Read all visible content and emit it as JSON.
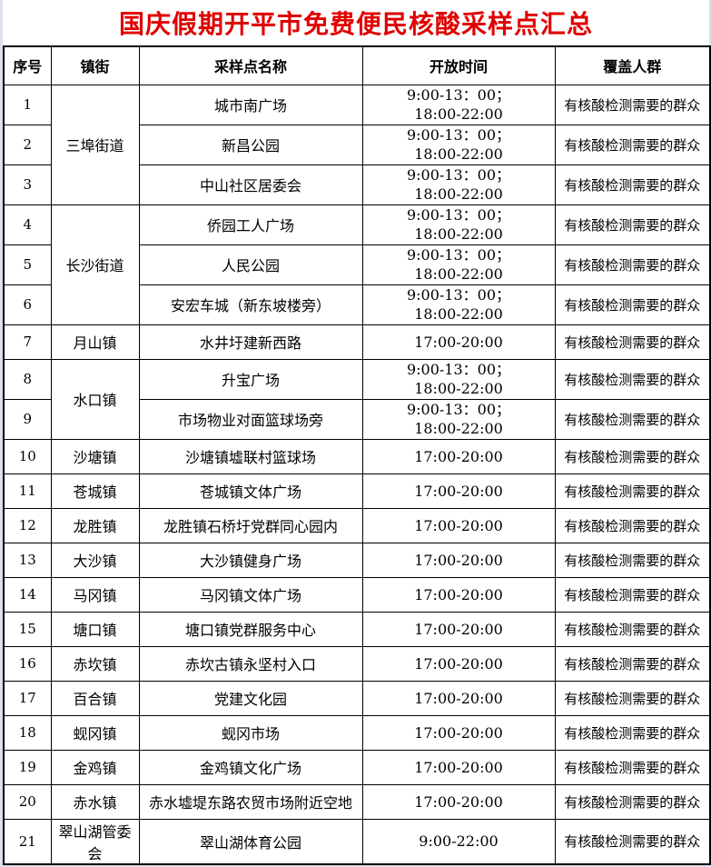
{
  "title": "国庆假期开平市免费便民核酸采样点汇总",
  "colors": {
    "title_text": "#e00000",
    "page_margin_bg": "#dbe0ec",
    "cell_bg": "#ffffff",
    "border": "#000000"
  },
  "table": {
    "headers": [
      "序号",
      "镇街",
      "采样点名称",
      "开放时间",
      "覆盖人群"
    ],
    "coverage_default": "有核酸检测需要的群众",
    "rows": [
      {
        "no": "1",
        "town": "三埠街道",
        "town_rowspan": 3,
        "site": "城市南广场",
        "time": [
          "9:00-13：00；",
          "18:00-22:00"
        ],
        "coverage": "有核酸检测需要的群众"
      },
      {
        "no": "2",
        "site": "新昌公园",
        "time": [
          "9:00-13：00；",
          "18:00-22:00"
        ],
        "coverage": "有核酸检测需要的群众"
      },
      {
        "no": "3",
        "site": "中山社区居委会",
        "time": [
          "9:00-13：00；",
          "18:00-22:00"
        ],
        "coverage": "有核酸检测需要的群众"
      },
      {
        "no": "4",
        "town": "长沙街道",
        "town_rowspan": 3,
        "site": "侨园工人广场",
        "time": [
          "9:00-13：00；",
          "18:00-22:00"
        ],
        "coverage": "有核酸检测需要的群众"
      },
      {
        "no": "5",
        "site": "人民公园",
        "time": [
          "9:00-13：00；",
          "18:00-22:00"
        ],
        "coverage": "有核酸检测需要的群众"
      },
      {
        "no": "6",
        "site": "安宏车城（新东坡楼旁）",
        "time": [
          "9:00-13：00；",
          "18:00-22:00"
        ],
        "coverage": "有核酸检测需要的群众"
      },
      {
        "no": "7",
        "town": "月山镇",
        "town_rowspan": 1,
        "site": "水井圩建新西路",
        "time": [
          "17:00-20:00"
        ],
        "coverage": "有核酸检测需要的群众"
      },
      {
        "no": "8",
        "town": "水口镇",
        "town_rowspan": 2,
        "site": "升宝广场",
        "time": [
          "9:00-13：00；",
          "18:00-22:00"
        ],
        "coverage": "有核酸检测需要的群众"
      },
      {
        "no": "9",
        "site": "市场物业对面篮球场旁",
        "time": [
          "9:00-13：00；",
          "18:00-22:00"
        ],
        "coverage": "有核酸检测需要的群众"
      },
      {
        "no": "10",
        "town": "沙塘镇",
        "town_rowspan": 1,
        "site": "沙塘镇墟联村篮球场",
        "time": [
          "17:00-20:00"
        ],
        "coverage": "有核酸检测需要的群众"
      },
      {
        "no": "11",
        "town": "苍城镇",
        "town_rowspan": 1,
        "site": "苍城镇文体广场",
        "time": [
          "17:00-20:00"
        ],
        "coverage": "有核酸检测需要的群众"
      },
      {
        "no": "12",
        "town": "龙胜镇",
        "town_rowspan": 1,
        "site": "龙胜镇石桥圩党群同心园内",
        "time": [
          "17:00-20:00"
        ],
        "coverage": "有核酸检测需要的群众"
      },
      {
        "no": "13",
        "town": "大沙镇",
        "town_rowspan": 1,
        "site": "大沙镇健身广场",
        "time": [
          "17:00-20:00"
        ],
        "coverage": "有核酸检测需要的群众"
      },
      {
        "no": "14",
        "town": "马冈镇",
        "town_rowspan": 1,
        "site": "马冈镇文体广场",
        "time": [
          "17:00-20:00"
        ],
        "coverage": "有核酸检测需要的群众"
      },
      {
        "no": "15",
        "town": "塘口镇",
        "town_rowspan": 1,
        "site": "塘口镇党群服务中心",
        "time": [
          "17:00-20:00"
        ],
        "coverage": "有核酸检测需要的群众"
      },
      {
        "no": "16",
        "town": "赤坎镇",
        "town_rowspan": 1,
        "site": "赤坎古镇永坚村入口",
        "time": [
          "17:00-20:00"
        ],
        "coverage": "有核酸检测需要的群众"
      },
      {
        "no": "17",
        "town": "百合镇",
        "town_rowspan": 1,
        "site": "党建文化园",
        "time": [
          "17:00-20:00"
        ],
        "coverage": "有核酸检测需要的群众"
      },
      {
        "no": "18",
        "town": "蚬冈镇",
        "town_rowspan": 1,
        "site": "蚬冈市场",
        "time": [
          "17:00-20:00"
        ],
        "coverage": "有核酸检测需要的群众"
      },
      {
        "no": "19",
        "town": "金鸡镇",
        "town_rowspan": 1,
        "site": "金鸡镇文化广场",
        "time": [
          "17:00-20:00"
        ],
        "coverage": "有核酸检测需要的群众"
      },
      {
        "no": "20",
        "town": "赤水镇",
        "town_rowspan": 1,
        "site": "赤水墟堤东路农贸市场附近空地",
        "time": [
          "17:00-20:00"
        ],
        "coverage": "有核酸检测需要的群众"
      },
      {
        "no": "21",
        "town": "翠山湖管委会",
        "town_rowspan": 1,
        "site": "翠山湖体育公园",
        "time": [
          "9:00-22:00"
        ],
        "coverage": "有核酸检测需要的群众"
      }
    ]
  }
}
